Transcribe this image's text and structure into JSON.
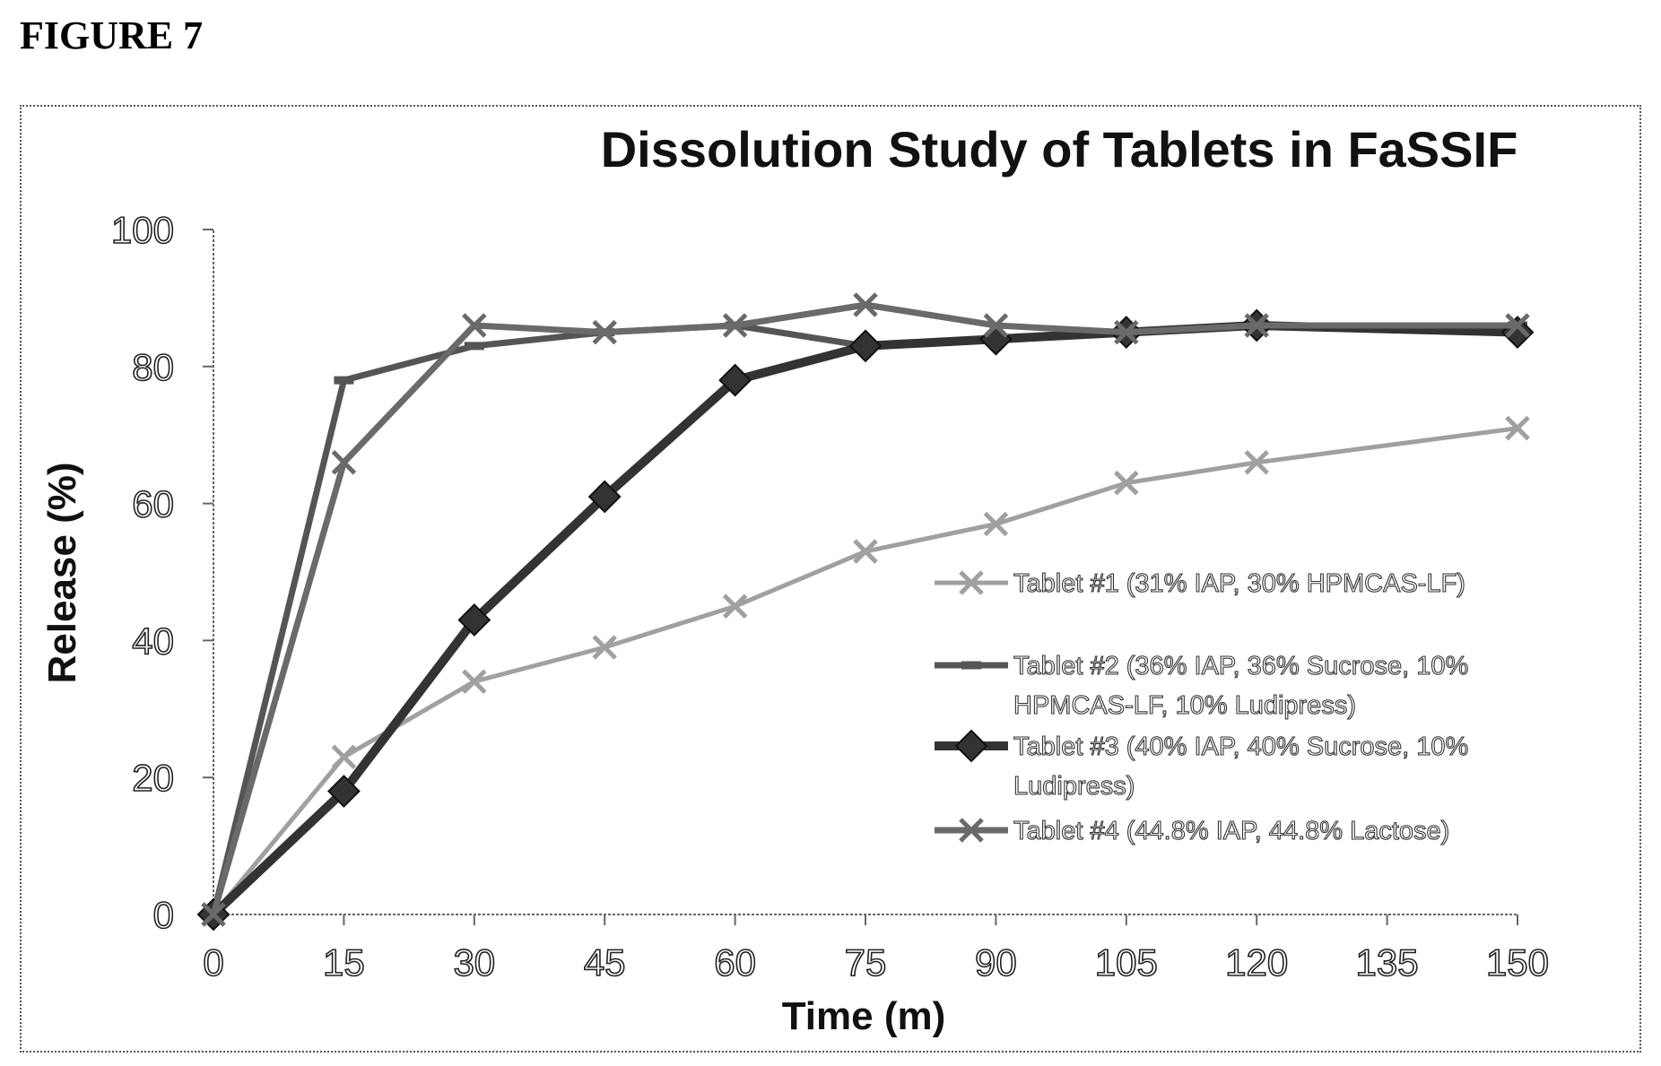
{
  "figure_label": "FIGURE 7",
  "chart_data": {
    "type": "line",
    "title": "Dissolution Study of Tablets in FaSSIF",
    "xlabel": "Time (m)",
    "ylabel": "Release (%)",
    "x": [
      0,
      15,
      30,
      45,
      60,
      75,
      90,
      105,
      120,
      135,
      150
    ],
    "xlim": [
      0,
      150
    ],
    "ylim": [
      0,
      100
    ],
    "x_ticks": [
      "0",
      "15",
      "30",
      "45",
      "60",
      "75",
      "90",
      "105",
      "120",
      "135",
      "150"
    ],
    "y_ticks": [
      "0",
      "20",
      "40",
      "60",
      "80",
      "100"
    ],
    "grid": false,
    "legend_position": "right",
    "series": [
      {
        "name": "Tablet #1 (31% IAP, 30% HPMCAS-LF)",
        "x": [
          0,
          15,
          30,
          45,
          60,
          75,
          90,
          105,
          120,
          150
        ],
        "values": [
          0,
          23,
          34,
          39,
          45,
          53,
          57,
          63,
          66,
          71
        ],
        "color": "#a0a0a0",
        "marker": "x"
      },
      {
        "name": "Tablet #2 (36% IAP, 36% Sucrose, 10% HPMCAS-LF, 10% Ludipress)",
        "x": [
          0,
          15,
          30,
          45,
          60,
          75,
          90,
          105,
          120,
          150
        ],
        "values": [
          0,
          78,
          83,
          85,
          86,
          83,
          84,
          85,
          86,
          86
        ],
        "color": "#555555",
        "marker": "dash"
      },
      {
        "name": "Tablet #3 (40% IAP, 40% Sucrose, 10% Ludipress)",
        "x": [
          0,
          15,
          30,
          45,
          60,
          75,
          90,
          105,
          120,
          150
        ],
        "values": [
          0,
          18,
          43,
          61,
          78,
          83,
          84,
          85,
          86,
          85
        ],
        "color": "#333333",
        "marker": "diamond"
      },
      {
        "name": "Tablet #4 (44.8% IAP, 44.8% Lactose)",
        "x": [
          0,
          15,
          30,
          45,
          60,
          75,
          90,
          105,
          120,
          150
        ],
        "values": [
          0,
          66,
          86,
          85,
          86,
          89,
          86,
          85,
          86,
          86
        ],
        "color": "#6a6a6a",
        "marker": "x"
      }
    ],
    "legend_lines": [
      [
        "Tablet #1 (31% IAP, 30% HPMCAS-LF)"
      ],
      [
        "Tablet #2 (36% IAP, 36% Sucrose, 10%",
        "HPMCAS-LF, 10% Ludipress)"
      ],
      [
        "Tablet #3 (40% IAP, 40% Sucrose, 10%",
        "Ludipress)"
      ],
      [
        "Tablet #4 (44.8% IAP, 44.8% Lactose)"
      ]
    ]
  }
}
